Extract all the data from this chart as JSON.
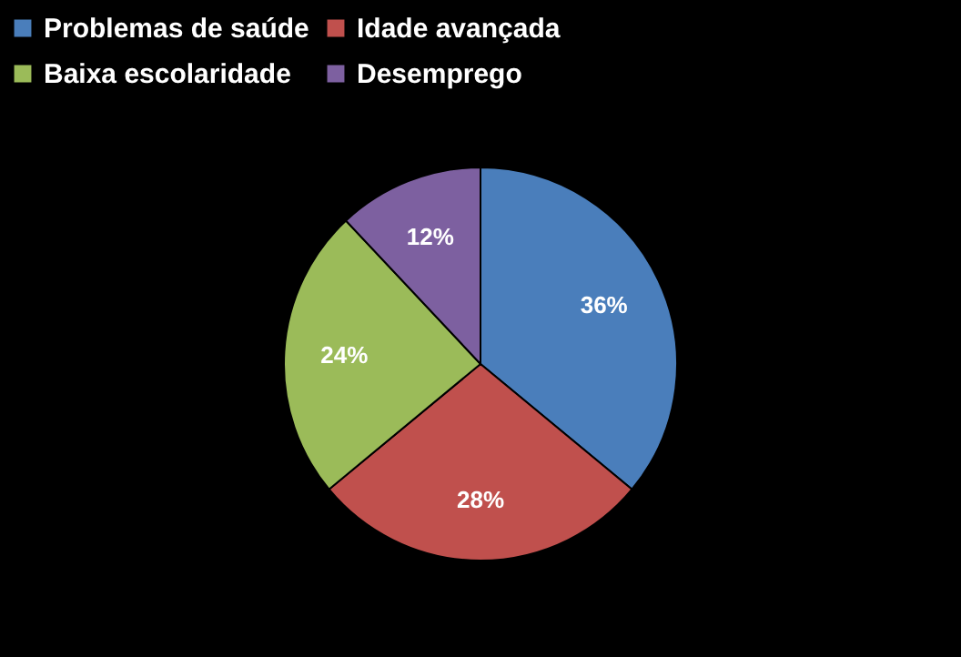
{
  "chart_data": {
    "type": "pie",
    "categories": [
      "Problemas de saúde",
      "Idade avançada",
      "Baixa escolaridade",
      "Desemprego"
    ],
    "values": [
      36,
      28,
      24,
      12
    ],
    "value_labels": [
      "36%",
      "28%",
      "24%",
      "12%"
    ],
    "colors": [
      "#4a7ebb",
      "#c0504d",
      "#9bbb59",
      "#7d60a0"
    ],
    "legend": "top"
  }
}
